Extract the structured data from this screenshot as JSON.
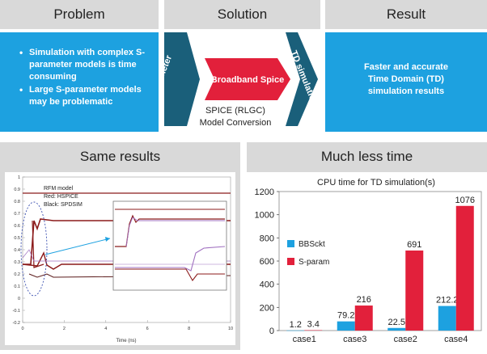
{
  "problem": {
    "title": "Problem",
    "bullets": [
      "Simulation with complex S-parameter models is time consuming",
      "Large S-parameter models may be problematic"
    ]
  },
  "solution": {
    "title": "Solution",
    "input_label": "S- parameter",
    "center_label": "Broadband Spice",
    "output_label": "TD simulation",
    "caption_line1": "SPICE (RLGC)",
    "caption_line2": "Model Conversion"
  },
  "result": {
    "title": "Result",
    "lines": [
      "Faster and accurate",
      "Time Domain (TD)",
      "simulation results"
    ]
  },
  "same_results": {
    "title": "Same results",
    "legend_lines": [
      "RFM model",
      "Red: HSPICE",
      "Black: SPDSIM"
    ],
    "x_axis_label": "Time (ns)",
    "x_ticks": [
      "0",
      "2",
      "4",
      "6",
      "8",
      "10"
    ],
    "y_ticks": [
      "1",
      "0.9",
      "0.8",
      "0.7",
      "0.6",
      "0.5",
      "0.4",
      "0.3",
      "0.2",
      "0.1",
      "0",
      "-0.1",
      "-0.2"
    ]
  },
  "much_less_time": {
    "title": "Much less time"
  },
  "colors": {
    "blue": "#1da1e0",
    "dark_teal": "#1a5f7a",
    "red": "#e2203b",
    "header_gray": "#d9d9d9",
    "wave_dark_red": "#8b1a1a",
    "wave_purple": "#a070c0"
  },
  "chart_data": {
    "type": "bar",
    "title": "CPU time for TD simulation(s)",
    "categories": [
      "case1",
      "case3",
      "case2",
      "case4"
    ],
    "series": [
      {
        "name": "BBSckt",
        "values": [
          1.2,
          79.2,
          22.5,
          212.2
        ],
        "color": "#1da1e0"
      },
      {
        "name": "S-param",
        "values": [
          3.4,
          216,
          691,
          1076
        ],
        "color": "#e2203b"
      }
    ],
    "value_labels": {
      "BBSckt": [
        "1.2",
        "79.2",
        "22.5",
        "212.2"
      ],
      "S-param": [
        "3.4",
        "216",
        "691",
        "1076"
      ]
    },
    "ylim": [
      0,
      1200
    ],
    "y_ticks": [
      0,
      200,
      400,
      600,
      800,
      1000,
      1200
    ],
    "legend_position": "left",
    "grid": false
  }
}
